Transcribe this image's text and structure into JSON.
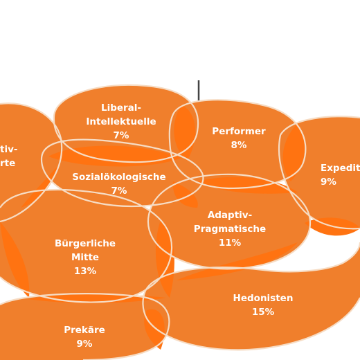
{
  "colors": {
    "fill": "#f07f2c",
    "overlap": "#ff7311",
    "outline": "#f6dcc4",
    "axis": "#444444"
  },
  "segments": [
    {
      "id": "liberal-intellektuelle",
      "lines": [
        "Liberal-",
        "Intellektuelle",
        "7%"
      ]
    },
    {
      "id": "performer",
      "lines": [
        "Performer",
        "8%"
      ]
    },
    {
      "id": "expeditive",
      "lines": [
        "Expedit",
        "9%"
      ]
    },
    {
      "id": "adaptiv-links",
      "lines": [
        "tiv-",
        "rte"
      ]
    },
    {
      "id": "sozialoekologische",
      "lines": [
        "Sozialökologische",
        "7%"
      ]
    },
    {
      "id": "adaptiv-pragmatische",
      "lines": [
        "Adaptiv-",
        "Pragmatische",
        "11%"
      ]
    },
    {
      "id": "buergerliche-mitte",
      "lines": [
        "Bürgerliche",
        "Mitte",
        "13%"
      ]
    },
    {
      "id": "hedonisten",
      "lines": [
        "Hedonisten",
        "15%"
      ]
    },
    {
      "id": "prekaere",
      "lines": [
        "Prekäre",
        "9%"
      ]
    }
  ]
}
